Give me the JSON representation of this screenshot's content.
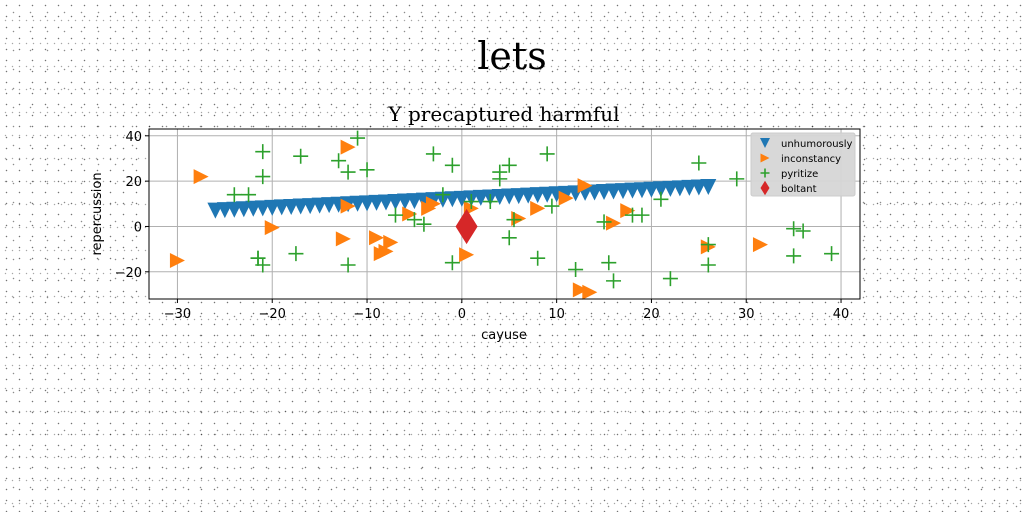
{
  "page_title": "lets",
  "chart_data": {
    "type": "scatter",
    "title": "Y precaptured harmful",
    "xlabel": "cayuse",
    "ylabel": "repercussion",
    "xlim": [
      -33,
      42
    ],
    "ylim": [
      -32,
      43
    ],
    "xticks": [
      -30,
      -20,
      -10,
      0,
      10,
      20,
      30,
      40
    ],
    "yticks": [
      -20,
      0,
      20,
      40
    ],
    "grid": true,
    "legend_position": "top-right",
    "series": [
      {
        "name": "unhumorously",
        "marker": "triangle-down",
        "color": "#1f77b4",
        "x": [
          -26,
          -25,
          -24,
          -23,
          -22,
          -21,
          -20,
          -19,
          -18,
          -17,
          -16,
          -15,
          -14,
          -13,
          -12,
          -11,
          -10,
          -9,
          -8,
          -7,
          -6,
          -5,
          -4,
          -3,
          -2,
          -1,
          0,
          1,
          2,
          3,
          4,
          5,
          6,
          7,
          8,
          9,
          10,
          11,
          12,
          13,
          14,
          15,
          16,
          17,
          18,
          19,
          20,
          21,
          22,
          23,
          24,
          25,
          26
        ],
        "y": [
          7.0,
          7.2,
          7.4,
          7.6,
          7.8,
          8.0,
          8.2,
          8.4,
          8.6,
          8.8,
          9.0,
          9.2,
          9.4,
          9.6,
          9.8,
          10.0,
          10.2,
          10.4,
          10.6,
          10.8,
          11.0,
          11.2,
          11.4,
          11.6,
          11.8,
          12.0,
          12.2,
          12.4,
          12.6,
          12.8,
          13.0,
          13.2,
          13.4,
          13.6,
          13.8,
          14.0,
          14.2,
          14.4,
          14.6,
          14.8,
          15.0,
          15.2,
          15.4,
          15.6,
          15.8,
          16.0,
          16.2,
          16.4,
          16.6,
          16.8,
          17.0,
          17.2,
          17.4
        ]
      },
      {
        "name": "inconstancy",
        "marker": "triangle-right",
        "color": "#ff7f0e",
        "x": [
          -27.5,
          -30,
          -12,
          -12,
          -12.5,
          -20,
          -9,
          -8,
          -8.5,
          -7.5,
          -5.5,
          -3,
          -3.5,
          0.5,
          6,
          8,
          11,
          13,
          13.5,
          16,
          17.5,
          26,
          31.5,
          12.5,
          1
        ],
        "y": [
          22,
          -15,
          35,
          9,
          -5.5,
          -0.5,
          -5,
          -11,
          -12,
          -7,
          5.5,
          10,
          8,
          -12.5,
          3.5,
          8,
          12.5,
          18,
          -29,
          1.5,
          7,
          -9,
          -8,
          -28,
          8
        ]
      },
      {
        "name": "pyritize",
        "marker": "plus",
        "color": "#2ca02c",
        "x": [
          -21,
          -22.5,
          -24,
          -21,
          -21.5,
          -17,
          -11,
          -13,
          -12,
          -10,
          -3,
          -1,
          -2,
          1,
          3,
          4,
          5,
          4,
          9,
          8,
          9.5,
          5.5,
          -5,
          -4,
          -7,
          -1,
          -12,
          -17.5,
          -21.5,
          -21,
          5,
          12,
          15.5,
          16,
          18,
          19,
          15,
          21,
          22,
          25,
          26,
          26,
          29,
          35,
          36,
          35,
          39
        ],
        "y": [
          33,
          14,
          14,
          22,
          -14,
          31,
          39,
          29,
          24,
          25,
          32,
          27,
          14,
          11,
          11,
          24,
          27,
          21,
          32,
          -14,
          9,
          3,
          3,
          1,
          5,
          -16,
          -17,
          -12,
          -14,
          -17,
          -5,
          -19,
          -16,
          -24,
          5,
          5,
          2,
          12,
          -23,
          28,
          -8,
          -17,
          21,
          -13,
          -2,
          -1,
          -12
        ]
      },
      {
        "name": "boltant",
        "marker": "diamond",
        "color": "#d62728",
        "x": [
          0.5
        ],
        "y": [
          0
        ]
      }
    ]
  }
}
